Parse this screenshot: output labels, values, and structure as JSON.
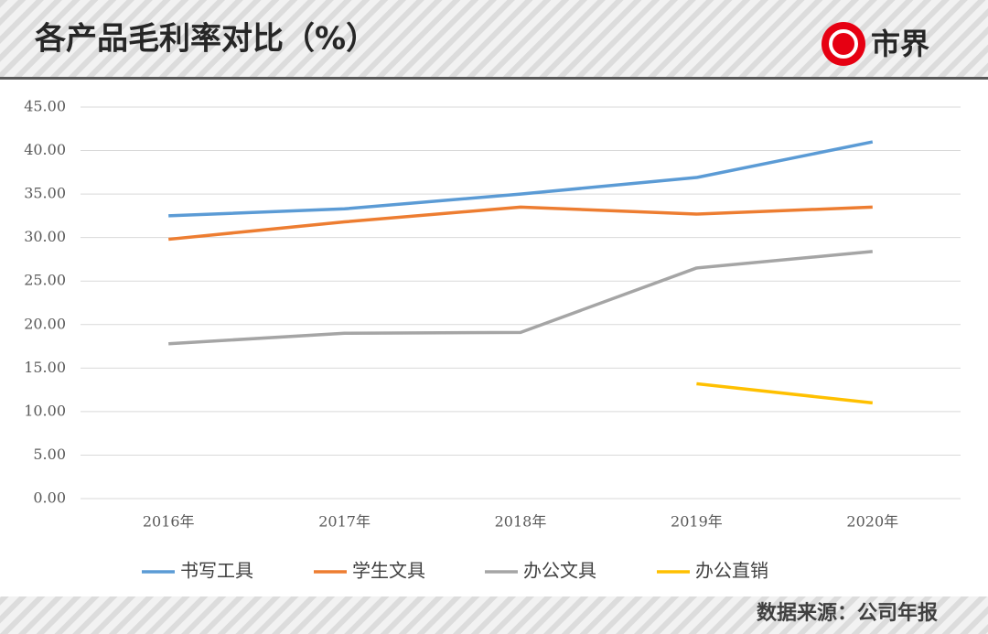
{
  "header": {
    "title": "各产品毛利率对比（%）",
    "logo": "市界"
  },
  "chart_data": {
    "type": "line",
    "categories": [
      "2016年",
      "2017年",
      "2018年",
      "2019年",
      "2020年"
    ],
    "series": [
      {
        "name": "书写工具",
        "color": "#5b9bd5",
        "values": [
          32.5,
          33.3,
          35.0,
          36.9,
          41.0
        ]
      },
      {
        "name": "学生文具",
        "color": "#ed7d31",
        "values": [
          29.8,
          31.8,
          33.5,
          32.7,
          33.5
        ]
      },
      {
        "name": "办公文具",
        "color": "#a5a5a5",
        "values": [
          17.8,
          19.0,
          19.1,
          26.5,
          28.4
        ]
      },
      {
        "name": "办公直销",
        "color": "#ffc000",
        "values": [
          null,
          null,
          null,
          13.2,
          11.0
        ]
      }
    ],
    "ylim": [
      0,
      45
    ],
    "yticks": [
      {
        "value": 0,
        "label": "0.00"
      },
      {
        "value": 5,
        "label": "5.00"
      },
      {
        "value": 10,
        "label": "10.00"
      },
      {
        "value": 15,
        "label": "15.00"
      },
      {
        "value": 20,
        "label": "20.00"
      },
      {
        "value": 25,
        "label": "25.00"
      },
      {
        "value": 30,
        "label": "30.00"
      },
      {
        "value": 35,
        "label": "35.00"
      },
      {
        "value": 40,
        "label": "40.00"
      },
      {
        "value": 45,
        "label": "45.00"
      }
    ],
    "grid": true,
    "legend": "bottom"
  },
  "footer": {
    "source": "数据来源：公司年报"
  }
}
